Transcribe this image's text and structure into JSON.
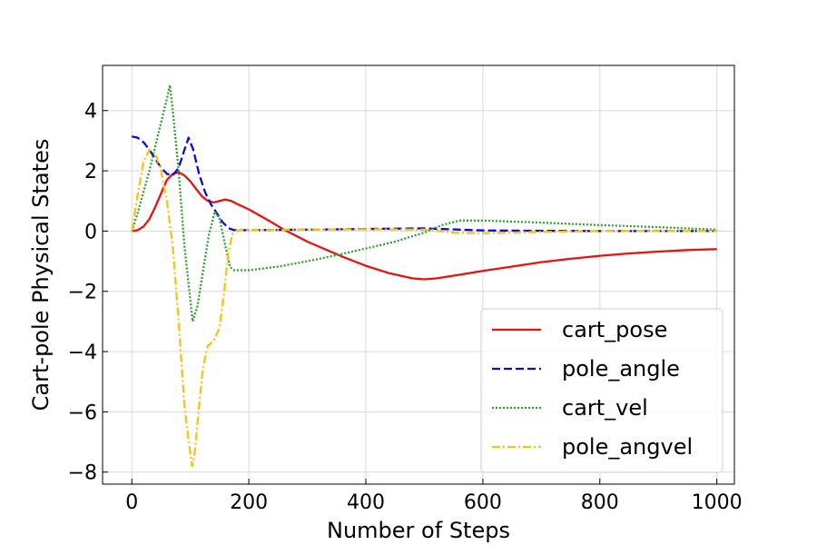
{
  "chart_data": {
    "type": "line",
    "title": "",
    "xlabel": "Number of Steps",
    "ylabel": "Cart-pole Physical States",
    "xlim": [
      -50,
      1030
    ],
    "ylim": [
      -8.4,
      5.5
    ],
    "xticks": [
      0,
      200,
      400,
      600,
      800,
      1000
    ],
    "yticks": [
      4,
      2,
      0,
      -2,
      -4,
      -6,
      -8
    ],
    "xtick_labels": [
      "0",
      "200",
      "400",
      "600",
      "800",
      "1000"
    ],
    "ytick_labels": [
      "4",
      "2",
      "0",
      "−2",
      "−4",
      "−6",
      "−8"
    ],
    "grid": true,
    "legend_position": "lower-right",
    "series": [
      {
        "name": "cart_pose",
        "color": "#e8120c",
        "style": "solid",
        "points": [
          [
            0,
            0
          ],
          [
            10,
            0.03
          ],
          [
            20,
            0.15
          ],
          [
            30,
            0.4
          ],
          [
            40,
            0.8
          ],
          [
            50,
            1.25
          ],
          [
            60,
            1.7
          ],
          [
            70,
            1.9
          ],
          [
            80,
            1.95
          ],
          [
            90,
            1.85
          ],
          [
            100,
            1.65
          ],
          [
            110,
            1.4
          ],
          [
            120,
            1.15
          ],
          [
            130,
            1.0
          ],
          [
            140,
            0.95
          ],
          [
            150,
            1.0
          ],
          [
            160,
            1.05
          ],
          [
            170,
            1.0
          ],
          [
            180,
            0.9
          ],
          [
            200,
            0.72
          ],
          [
            220,
            0.5
          ],
          [
            240,
            0.28
          ],
          [
            260,
            0.05
          ],
          [
            280,
            -0.15
          ],
          [
            300,
            -0.35
          ],
          [
            330,
            -0.6
          ],
          [
            360,
            -0.85
          ],
          [
            400,
            -1.15
          ],
          [
            440,
            -1.4
          ],
          [
            480,
            -1.57
          ],
          [
            500,
            -1.6
          ],
          [
            520,
            -1.57
          ],
          [
            560,
            -1.45
          ],
          [
            600,
            -1.32
          ],
          [
            650,
            -1.18
          ],
          [
            700,
            -1.03
          ],
          [
            750,
            -0.92
          ],
          [
            800,
            -0.82
          ],
          [
            850,
            -0.74
          ],
          [
            900,
            -0.68
          ],
          [
            950,
            -0.63
          ],
          [
            1000,
            -0.6
          ]
        ]
      },
      {
        "name": "pole_angle",
        "color": "#0b0bcf",
        "style": "dashed",
        "points": [
          [
            0,
            3.14
          ],
          [
            10,
            3.1
          ],
          [
            20,
            2.95
          ],
          [
            30,
            2.7
          ],
          [
            40,
            2.4
          ],
          [
            50,
            2.1
          ],
          [
            60,
            1.9
          ],
          [
            70,
            1.85
          ],
          [
            80,
            2.1
          ],
          [
            90,
            2.7
          ],
          [
            97,
            3.1
          ],
          [
            105,
            2.7
          ],
          [
            115,
            1.9
          ],
          [
            125,
            1.3
          ],
          [
            135,
            0.9
          ],
          [
            145,
            0.6
          ],
          [
            155,
            0.3
          ],
          [
            165,
            0.1
          ],
          [
            175,
            0.03
          ],
          [
            200,
            0.03
          ],
          [
            300,
            0.05
          ],
          [
            400,
            0.07
          ],
          [
            500,
            0.09
          ],
          [
            560,
            0.05
          ],
          [
            600,
            0.02
          ],
          [
            700,
            0.01
          ],
          [
            800,
            0.0
          ],
          [
            900,
            0.0
          ],
          [
            1000,
            0.0
          ]
        ]
      },
      {
        "name": "cart_vel",
        "color": "#2ca02c",
        "style": "dotted",
        "points": [
          [
            0,
            0
          ],
          [
            10,
            0.6
          ],
          [
            20,
            1.3
          ],
          [
            30,
            2.0
          ],
          [
            40,
            2.8
          ],
          [
            50,
            3.6
          ],
          [
            60,
            4.4
          ],
          [
            65,
            4.85
          ],
          [
            70,
            4.0
          ],
          [
            80,
            2.0
          ],
          [
            90,
            -0.5
          ],
          [
            100,
            -2.3
          ],
          [
            104,
            -3.0
          ],
          [
            112,
            -2.5
          ],
          [
            122,
            -1.3
          ],
          [
            132,
            -0.1
          ],
          [
            142,
            0.65
          ],
          [
            150,
            0.4
          ],
          [
            160,
            -0.5
          ],
          [
            168,
            -1.2
          ],
          [
            175,
            -1.3
          ],
          [
            200,
            -1.3
          ],
          [
            250,
            -1.18
          ],
          [
            300,
            -1.0
          ],
          [
            350,
            -0.8
          ],
          [
            400,
            -0.58
          ],
          [
            450,
            -0.35
          ],
          [
            500,
            -0.05
          ],
          [
            530,
            0.2
          ],
          [
            560,
            0.35
          ],
          [
            600,
            0.35
          ],
          [
            700,
            0.28
          ],
          [
            800,
            0.2
          ],
          [
            900,
            0.13
          ],
          [
            1000,
            0.05
          ]
        ]
      },
      {
        "name": "pole_angvel",
        "color": "#fcc10f",
        "style": "dashdot",
        "points": [
          [
            0,
            0
          ],
          [
            10,
            1.2
          ],
          [
            20,
            2.3
          ],
          [
            30,
            2.7
          ],
          [
            40,
            2.6
          ],
          [
            50,
            2.0
          ],
          [
            60,
            1.0
          ],
          [
            70,
            -0.5
          ],
          [
            80,
            -3.0
          ],
          [
            90,
            -5.8
          ],
          [
            100,
            -7.4
          ],
          [
            103,
            -7.8
          ],
          [
            108,
            -7.3
          ],
          [
            115,
            -5.8
          ],
          [
            122,
            -4.5
          ],
          [
            130,
            -3.8
          ],
          [
            140,
            -3.65
          ],
          [
            150,
            -3.2
          ],
          [
            158,
            -2.0
          ],
          [
            165,
            -0.7
          ],
          [
            172,
            -0.1
          ],
          [
            180,
            0.02
          ],
          [
            200,
            0.03
          ],
          [
            300,
            0.05
          ],
          [
            400,
            0.06
          ],
          [
            500,
            0.05
          ],
          [
            550,
            -0.05
          ],
          [
            600,
            -0.07
          ],
          [
            700,
            -0.03
          ],
          [
            800,
            0.0
          ],
          [
            900,
            0.0
          ],
          [
            1000,
            0.0
          ]
        ]
      }
    ]
  }
}
